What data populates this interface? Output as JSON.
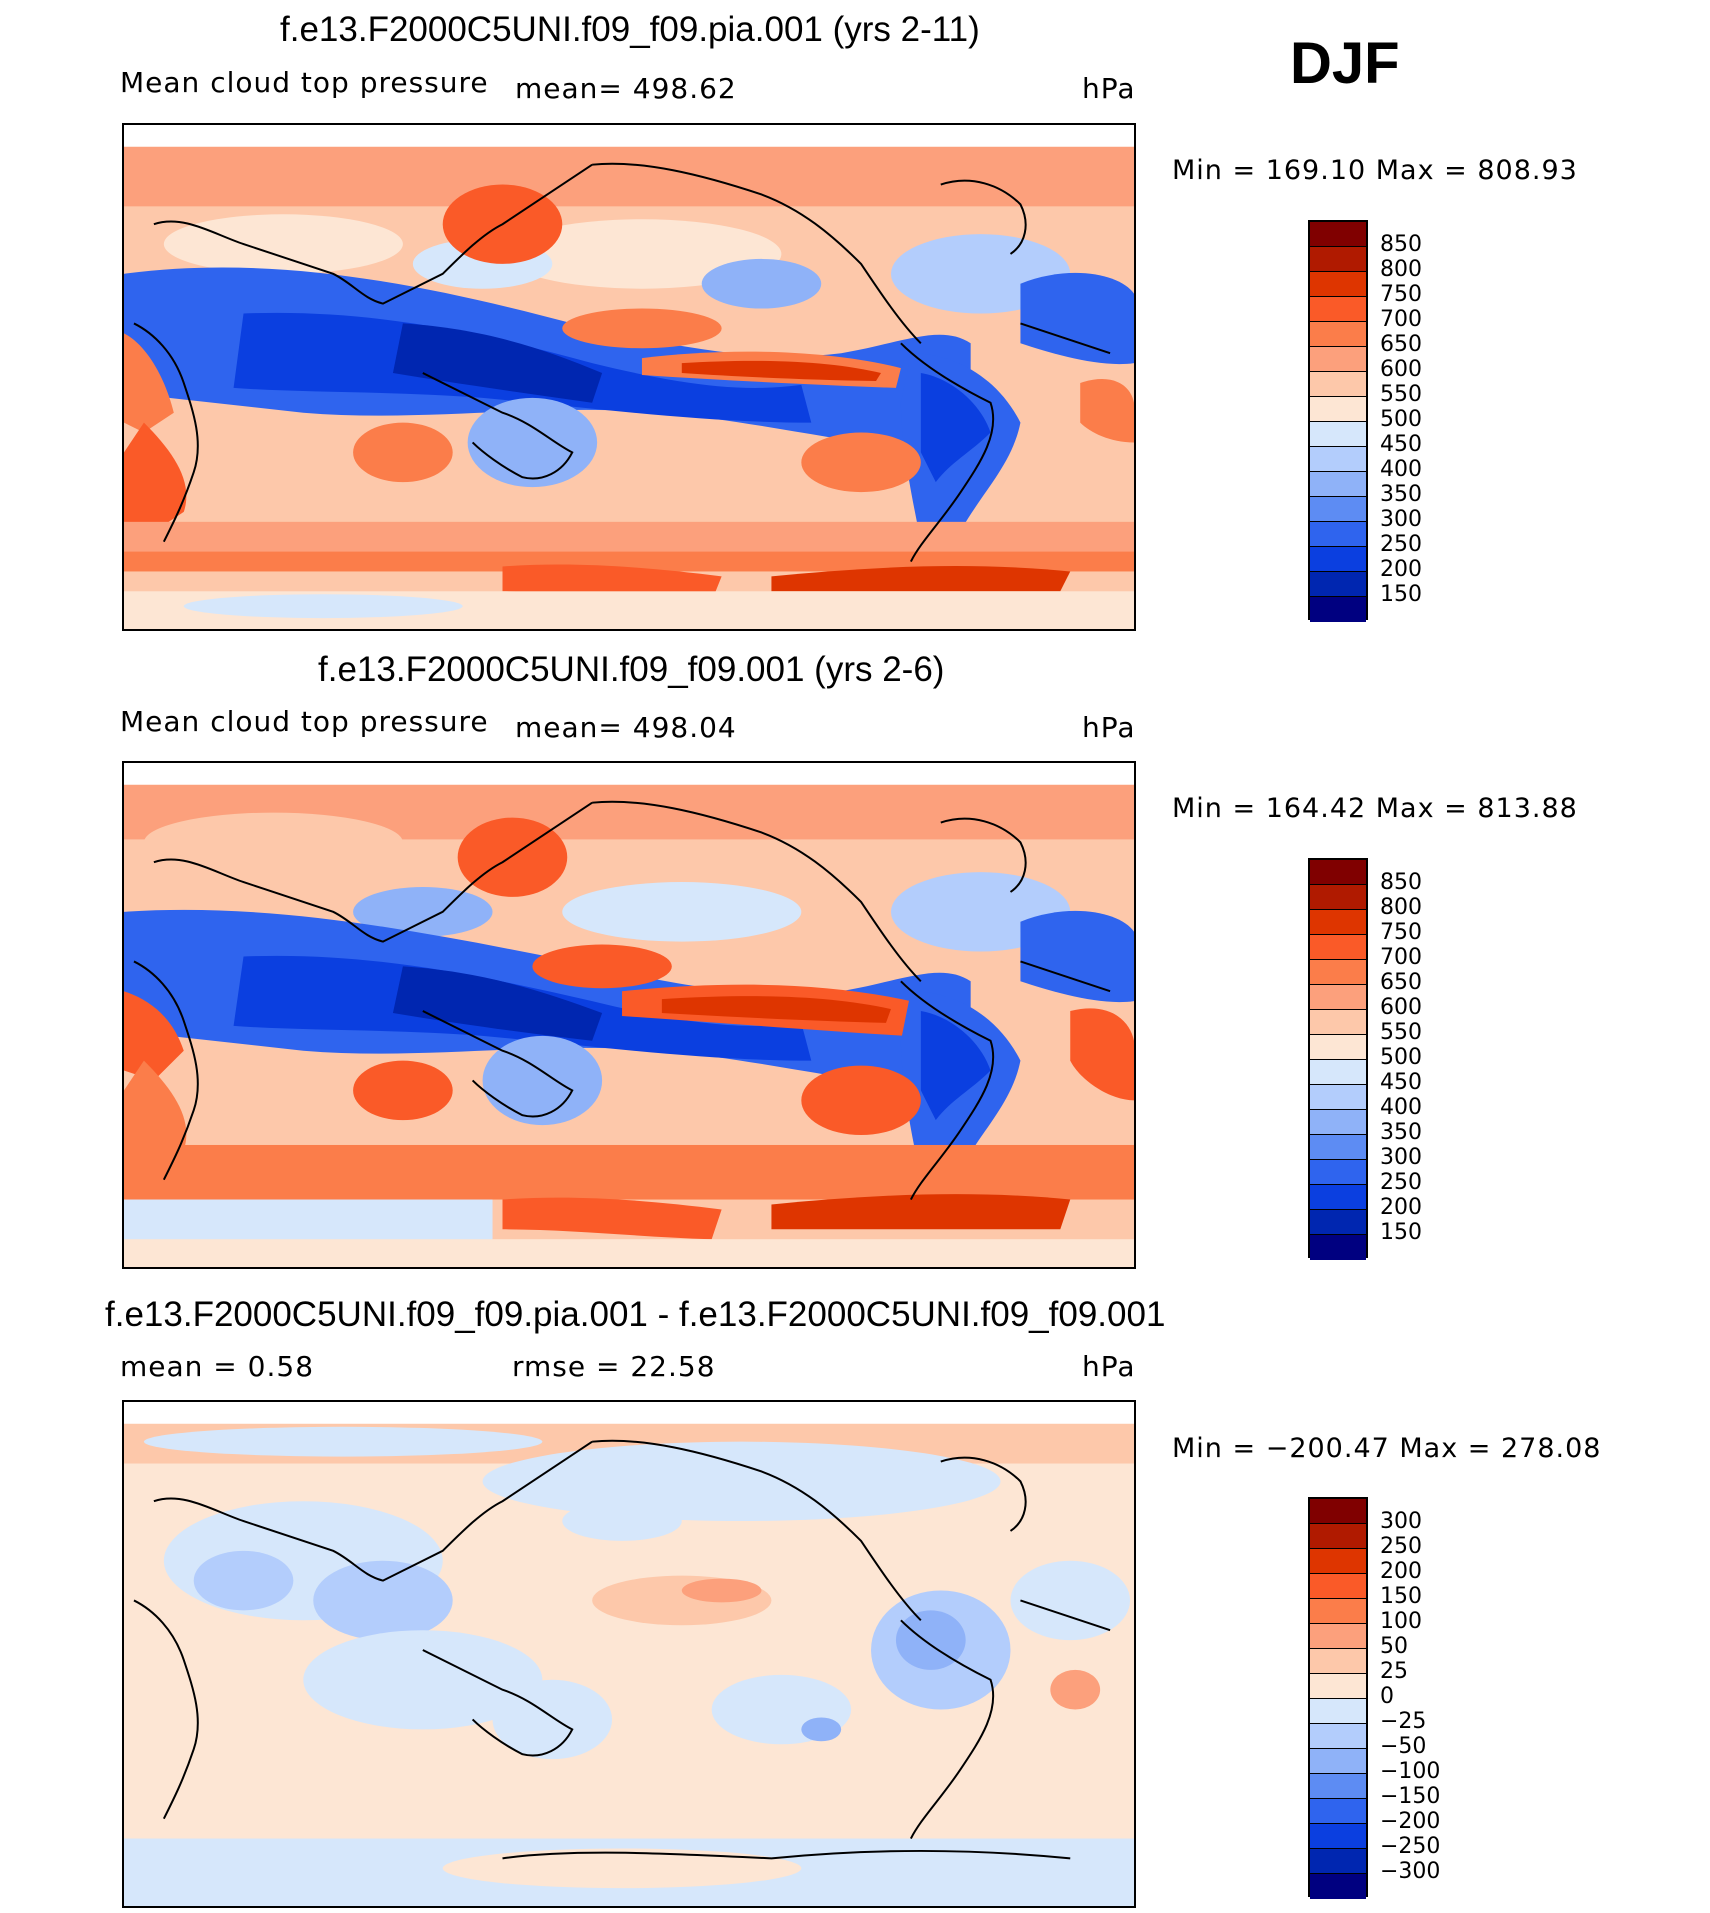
{
  "season": "DJF",
  "panels": [
    {
      "title": "f.e13.F2000C5UNI.f09_f09.pia.001 (yrs 2-11)",
      "variable": "Mean cloud top pressure",
      "mean_label": "mean= 498.62",
      "units": "hPa",
      "minmax": "Min = 169.10 Max = 808.93",
      "colorbar_labels": [
        "850",
        "800",
        "750",
        "700",
        "650",
        "600",
        "550",
        "500",
        "450",
        "400",
        "350",
        "300",
        "250",
        "200",
        "150"
      ]
    },
    {
      "title": "f.e13.F2000C5UNI.f09_f09.001 (yrs 2-6)",
      "variable": "Mean cloud top pressure",
      "mean_label": "mean= 498.04",
      "units": "hPa",
      "minmax": "Min = 164.42 Max = 813.88",
      "colorbar_labels": [
        "850",
        "800",
        "750",
        "700",
        "650",
        "600",
        "550",
        "500",
        "450",
        "400",
        "350",
        "300",
        "250",
        "200",
        "150"
      ]
    },
    {
      "title": "f.e13.F2000C5UNI.f09_f09.pia.001 - f.e13.F2000C5UNI.f09_f09.001",
      "mean_label": "mean =    0.58",
      "rmse_label": "rmse =   22.58",
      "units": "hPa",
      "minmax": "Min = −200.47 Max = 278.08",
      "colorbar_labels": [
        "300",
        "250",
        "200",
        "150",
        "100",
        "50",
        "25",
        "0",
        "−25",
        "−50",
        "−100",
        "−150",
        "−200",
        "−250",
        "−300"
      ]
    }
  ],
  "colors": {
    "abs_scale": [
      "#800000",
      "#b01a00",
      "#de3500",
      "#fa5a28",
      "#fb7d4a",
      "#fca07c",
      "#fdc8aa",
      "#fde6d4",
      "#d6e7fb",
      "#b3cdfc",
      "#8fb2f8",
      "#5d8cf3",
      "#2f64ee",
      "#0b3fe0",
      "#0026b0",
      "#000080"
    ],
    "diff_scale": [
      "#800000",
      "#b01a00",
      "#de3500",
      "#fa5a28",
      "#fb7d4a",
      "#fca07c",
      "#fdc8aa",
      "#fde6d4",
      "#d6e7fb",
      "#b3cdfc",
      "#8fb2f8",
      "#5d8cf3",
      "#2f64ee",
      "#0b3fe0",
      "#0026b0",
      "#000080"
    ]
  }
}
